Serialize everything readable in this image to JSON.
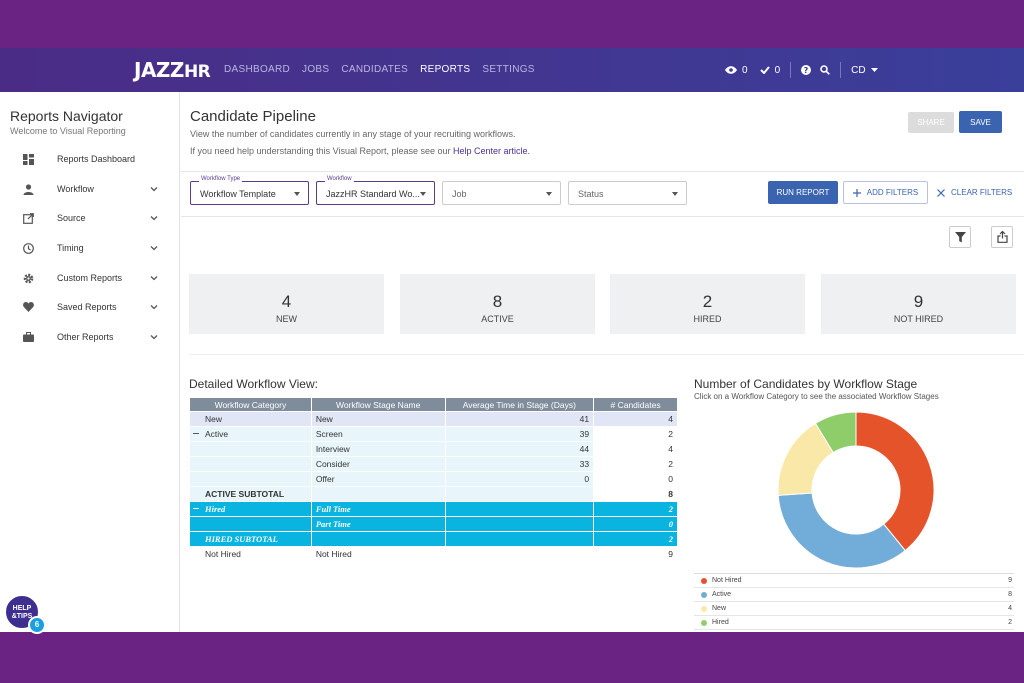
{
  "nav": {
    "logo_main": "JAZZ",
    "logo_hr": "HR",
    "links": [
      "DASHBOARD",
      "JOBS",
      "CANDIDATES",
      "REPORTS",
      "SETTINGS"
    ],
    "active_link": "REPORTS",
    "views_count": "0",
    "tasks_count": "0",
    "user_initials": "CD"
  },
  "sidebar": {
    "title": "Reports Navigator",
    "subtitle": "Welcome to Visual Reporting",
    "items": [
      {
        "label": "Reports Dashboard",
        "icon": "dashboard-icon",
        "has_chevron": false
      },
      {
        "label": "Workflow",
        "icon": "person-icon",
        "has_chevron": true
      },
      {
        "label": "Source",
        "icon": "external-link-icon",
        "has_chevron": true
      },
      {
        "label": "Timing",
        "icon": "clock-icon",
        "has_chevron": true
      },
      {
        "label": "Custom Reports",
        "icon": "gear-icon",
        "has_chevron": true
      },
      {
        "label": "Saved Reports",
        "icon": "heart-icon",
        "has_chevron": true
      },
      {
        "label": "Other Reports",
        "icon": "briefcase-icon",
        "has_chevron": true
      }
    ],
    "help_label_1": "HELP",
    "help_label_2": "&TIPS",
    "help_count": "6"
  },
  "page": {
    "title": "Candidate Pipeline",
    "description": "View the number of candidates currently in any stage of your recruiting workflows.",
    "help_prefix": "If you need help understanding this Visual Report, please see our ",
    "help_link": "Help Center article.",
    "share_label": "SHARE",
    "save_label": "SAVE"
  },
  "filters": {
    "workflow_type": {
      "caption": "Workflow Type",
      "value": "Workflow Template"
    },
    "workflow": {
      "caption": "Workflow",
      "value": "JazzHR Standard Wo..."
    },
    "job": {
      "placeholder": "Job"
    },
    "status": {
      "placeholder": "Status"
    },
    "run_label": "RUN REPORT",
    "add_label": "ADD FILTERS",
    "clear_label": "CLEAR FILTERS"
  },
  "summary": [
    {
      "count": "4",
      "label": "NEW"
    },
    {
      "count": "8",
      "label": "ACTIVE"
    },
    {
      "count": "2",
      "label": "HIRED"
    },
    {
      "count": "9",
      "label": "NOT HIRED"
    }
  ],
  "table": {
    "title": "Detailed Workflow View:",
    "headers": [
      "Workflow Category",
      "Workflow Stage Name",
      "Average Time in Stage (Days)",
      "# Candidates"
    ],
    "rows": [
      {
        "cat": "New",
        "stage": "New",
        "avg": "41",
        "count": "4"
      },
      {
        "cat": "Active",
        "stage": "Screen",
        "avg": "39",
        "count": "2"
      },
      {
        "cat": "",
        "stage": "Interview",
        "avg": "44",
        "count": "4"
      },
      {
        "cat": "",
        "stage": "Consider",
        "avg": "33",
        "count": "2"
      },
      {
        "cat": "",
        "stage": "Offer",
        "avg": "0",
        "count": "0"
      },
      {
        "cat": "ACTIVE SUBTOTAL",
        "stage": "",
        "avg": "",
        "count": "8"
      },
      {
        "cat": "Hired",
        "stage": "Full Time",
        "avg": "",
        "count": "2"
      },
      {
        "cat": "",
        "stage": "Part Time",
        "avg": "",
        "count": "0"
      },
      {
        "cat": "HIRED SUBTOTAL",
        "stage": "",
        "avg": "",
        "count": "2"
      },
      {
        "cat": "Not Hired",
        "stage": "Not Hired",
        "avg": "",
        "count": "9"
      }
    ]
  },
  "chart": {
    "title": "Number of Candidates by Workflow Stage",
    "subtitle": "Click on a Workflow Category to see the associated Workflow Stages"
  },
  "chart_data": {
    "type": "pie",
    "categories": [
      "Not Hired",
      "Active",
      "New",
      "Hired"
    ],
    "values": [
      9,
      8,
      4,
      2
    ],
    "colors": [
      "#e5532a",
      "#72acd8",
      "#f9e8a8",
      "#8fcd6a"
    ],
    "title": "Number of Candidates by Workflow Stage"
  }
}
